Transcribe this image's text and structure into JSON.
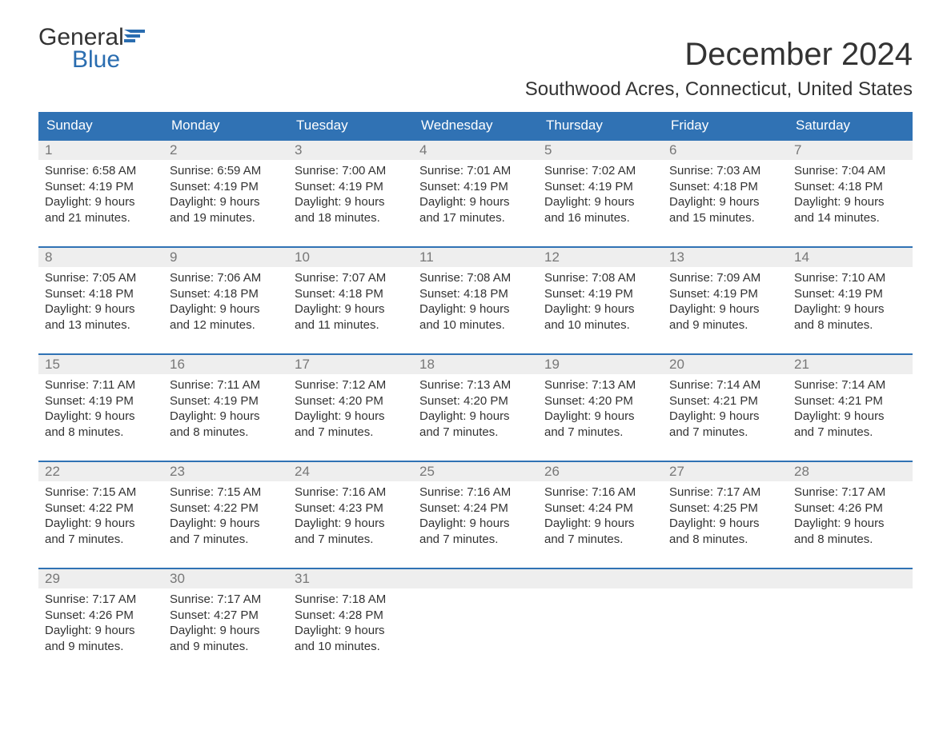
{
  "logo": {
    "text1": "General",
    "text2": "Blue",
    "flag_color": "#2a6db0",
    "general_color": "#333333",
    "blue_color": "#2a6db0"
  },
  "title": "December 2024",
  "location": "Southwood Acres, Connecticut, United States",
  "colors": {
    "header_bg": "#3072b4",
    "header_text": "#ffffff",
    "daynum_bg": "#eeeeee",
    "daynum_text": "#777777",
    "body_text": "#333333",
    "week_border": "#3072b4",
    "page_bg": "#ffffff"
  },
  "day_headers": [
    "Sunday",
    "Monday",
    "Tuesday",
    "Wednesday",
    "Thursday",
    "Friday",
    "Saturday"
  ],
  "weeks": [
    [
      {
        "n": "1",
        "sunrise": "Sunrise: 6:58 AM",
        "sunset": "Sunset: 4:19 PM",
        "dl1": "Daylight: 9 hours",
        "dl2": "and 21 minutes."
      },
      {
        "n": "2",
        "sunrise": "Sunrise: 6:59 AM",
        "sunset": "Sunset: 4:19 PM",
        "dl1": "Daylight: 9 hours",
        "dl2": "and 19 minutes."
      },
      {
        "n": "3",
        "sunrise": "Sunrise: 7:00 AM",
        "sunset": "Sunset: 4:19 PM",
        "dl1": "Daylight: 9 hours",
        "dl2": "and 18 minutes."
      },
      {
        "n": "4",
        "sunrise": "Sunrise: 7:01 AM",
        "sunset": "Sunset: 4:19 PM",
        "dl1": "Daylight: 9 hours",
        "dl2": "and 17 minutes."
      },
      {
        "n": "5",
        "sunrise": "Sunrise: 7:02 AM",
        "sunset": "Sunset: 4:19 PM",
        "dl1": "Daylight: 9 hours",
        "dl2": "and 16 minutes."
      },
      {
        "n": "6",
        "sunrise": "Sunrise: 7:03 AM",
        "sunset": "Sunset: 4:18 PM",
        "dl1": "Daylight: 9 hours",
        "dl2": "and 15 minutes."
      },
      {
        "n": "7",
        "sunrise": "Sunrise: 7:04 AM",
        "sunset": "Sunset: 4:18 PM",
        "dl1": "Daylight: 9 hours",
        "dl2": "and 14 minutes."
      }
    ],
    [
      {
        "n": "8",
        "sunrise": "Sunrise: 7:05 AM",
        "sunset": "Sunset: 4:18 PM",
        "dl1": "Daylight: 9 hours",
        "dl2": "and 13 minutes."
      },
      {
        "n": "9",
        "sunrise": "Sunrise: 7:06 AM",
        "sunset": "Sunset: 4:18 PM",
        "dl1": "Daylight: 9 hours",
        "dl2": "and 12 minutes."
      },
      {
        "n": "10",
        "sunrise": "Sunrise: 7:07 AM",
        "sunset": "Sunset: 4:18 PM",
        "dl1": "Daylight: 9 hours",
        "dl2": "and 11 minutes."
      },
      {
        "n": "11",
        "sunrise": "Sunrise: 7:08 AM",
        "sunset": "Sunset: 4:18 PM",
        "dl1": "Daylight: 9 hours",
        "dl2": "and 10 minutes."
      },
      {
        "n": "12",
        "sunrise": "Sunrise: 7:08 AM",
        "sunset": "Sunset: 4:19 PM",
        "dl1": "Daylight: 9 hours",
        "dl2": "and 10 minutes."
      },
      {
        "n": "13",
        "sunrise": "Sunrise: 7:09 AM",
        "sunset": "Sunset: 4:19 PM",
        "dl1": "Daylight: 9 hours",
        "dl2": "and 9 minutes."
      },
      {
        "n": "14",
        "sunrise": "Sunrise: 7:10 AM",
        "sunset": "Sunset: 4:19 PM",
        "dl1": "Daylight: 9 hours",
        "dl2": "and 8 minutes."
      }
    ],
    [
      {
        "n": "15",
        "sunrise": "Sunrise: 7:11 AM",
        "sunset": "Sunset: 4:19 PM",
        "dl1": "Daylight: 9 hours",
        "dl2": "and 8 minutes."
      },
      {
        "n": "16",
        "sunrise": "Sunrise: 7:11 AM",
        "sunset": "Sunset: 4:19 PM",
        "dl1": "Daylight: 9 hours",
        "dl2": "and 8 minutes."
      },
      {
        "n": "17",
        "sunrise": "Sunrise: 7:12 AM",
        "sunset": "Sunset: 4:20 PM",
        "dl1": "Daylight: 9 hours",
        "dl2": "and 7 minutes."
      },
      {
        "n": "18",
        "sunrise": "Sunrise: 7:13 AM",
        "sunset": "Sunset: 4:20 PM",
        "dl1": "Daylight: 9 hours",
        "dl2": "and 7 minutes."
      },
      {
        "n": "19",
        "sunrise": "Sunrise: 7:13 AM",
        "sunset": "Sunset: 4:20 PM",
        "dl1": "Daylight: 9 hours",
        "dl2": "and 7 minutes."
      },
      {
        "n": "20",
        "sunrise": "Sunrise: 7:14 AM",
        "sunset": "Sunset: 4:21 PM",
        "dl1": "Daylight: 9 hours",
        "dl2": "and 7 minutes."
      },
      {
        "n": "21",
        "sunrise": "Sunrise: 7:14 AM",
        "sunset": "Sunset: 4:21 PM",
        "dl1": "Daylight: 9 hours",
        "dl2": "and 7 minutes."
      }
    ],
    [
      {
        "n": "22",
        "sunrise": "Sunrise: 7:15 AM",
        "sunset": "Sunset: 4:22 PM",
        "dl1": "Daylight: 9 hours",
        "dl2": "and 7 minutes."
      },
      {
        "n": "23",
        "sunrise": "Sunrise: 7:15 AM",
        "sunset": "Sunset: 4:22 PM",
        "dl1": "Daylight: 9 hours",
        "dl2": "and 7 minutes."
      },
      {
        "n": "24",
        "sunrise": "Sunrise: 7:16 AM",
        "sunset": "Sunset: 4:23 PM",
        "dl1": "Daylight: 9 hours",
        "dl2": "and 7 minutes."
      },
      {
        "n": "25",
        "sunrise": "Sunrise: 7:16 AM",
        "sunset": "Sunset: 4:24 PM",
        "dl1": "Daylight: 9 hours",
        "dl2": "and 7 minutes."
      },
      {
        "n": "26",
        "sunrise": "Sunrise: 7:16 AM",
        "sunset": "Sunset: 4:24 PM",
        "dl1": "Daylight: 9 hours",
        "dl2": "and 7 minutes."
      },
      {
        "n": "27",
        "sunrise": "Sunrise: 7:17 AM",
        "sunset": "Sunset: 4:25 PM",
        "dl1": "Daylight: 9 hours",
        "dl2": "and 8 minutes."
      },
      {
        "n": "28",
        "sunrise": "Sunrise: 7:17 AM",
        "sunset": "Sunset: 4:26 PM",
        "dl1": "Daylight: 9 hours",
        "dl2": "and 8 minutes."
      }
    ],
    [
      {
        "n": "29",
        "sunrise": "Sunrise: 7:17 AM",
        "sunset": "Sunset: 4:26 PM",
        "dl1": "Daylight: 9 hours",
        "dl2": "and 9 minutes."
      },
      {
        "n": "30",
        "sunrise": "Sunrise: 7:17 AM",
        "sunset": "Sunset: 4:27 PM",
        "dl1": "Daylight: 9 hours",
        "dl2": "and 9 minutes."
      },
      {
        "n": "31",
        "sunrise": "Sunrise: 7:18 AM",
        "sunset": "Sunset: 4:28 PM",
        "dl1": "Daylight: 9 hours",
        "dl2": "and 10 minutes."
      },
      {
        "n": "",
        "sunrise": "",
        "sunset": "",
        "dl1": "",
        "dl2": "",
        "empty": true
      },
      {
        "n": "",
        "sunrise": "",
        "sunset": "",
        "dl1": "",
        "dl2": "",
        "empty": true
      },
      {
        "n": "",
        "sunrise": "",
        "sunset": "",
        "dl1": "",
        "dl2": "",
        "empty": true
      },
      {
        "n": "",
        "sunrise": "",
        "sunset": "",
        "dl1": "",
        "dl2": "",
        "empty": true
      }
    ]
  ]
}
